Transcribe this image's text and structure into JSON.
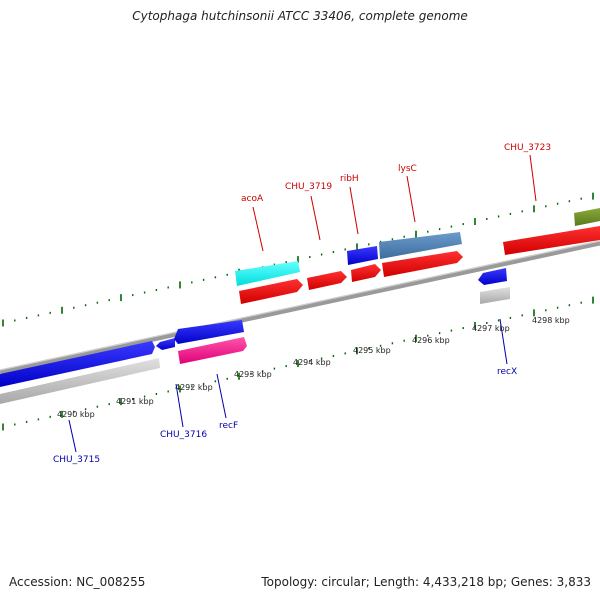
{
  "header": {
    "title": "Cytophaga hutchinsonii ATCC 33406, complete genome"
  },
  "footer": {
    "accession": "Accession: NC_008255",
    "stats": "Topology: circular; Length: 4,433,218 bp; Genes: 3,833"
  },
  "map": {
    "scale_labels": [
      "4290 kbp",
      "4291 kbp",
      "4292 kbp",
      "4293 kbp",
      "4294 kbp",
      "4295 kbp",
      "4296 kbp",
      "4297 kbp",
      "4298 kbp"
    ],
    "gene_labels_forward": [
      "acoA",
      "CHU_3719",
      "ribH",
      "lysC",
      "CHU_3723"
    ],
    "gene_labels_reverse": [
      "CHU_3715",
      "CHU_3716",
      "recF",
      "recX"
    ],
    "colors": {
      "label_forward": "#cc0000",
      "label_reverse": "#0000aa",
      "tick": "#006600",
      "backbone": "#888888"
    }
  }
}
